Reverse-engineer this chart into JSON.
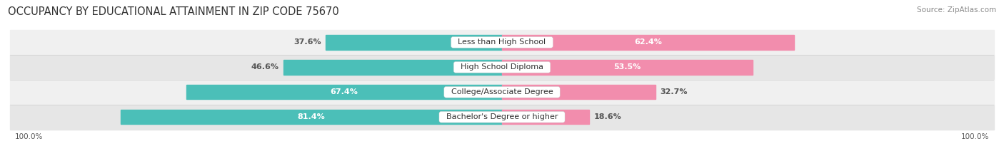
{
  "title": "OCCUPANCY BY EDUCATIONAL ATTAINMENT IN ZIP CODE 75670",
  "source": "Source: ZipAtlas.com",
  "categories": [
    "Less than High School",
    "High School Diploma",
    "College/Associate Degree",
    "Bachelor's Degree or higher"
  ],
  "owner_values": [
    37.6,
    46.6,
    67.4,
    81.4
  ],
  "renter_values": [
    62.4,
    53.5,
    32.7,
    18.6
  ],
  "owner_color": "#4BBFB8",
  "renter_color": "#F28DAD",
  "row_bg_colors": [
    "#F0F0F0",
    "#E6E6E6"
  ],
  "row_shadow_color": "#D0D0D0",
  "label_color_light": "#FFFFFF",
  "label_color_dark": "#555555",
  "axis_label_left": "100.0%",
  "axis_label_right": "100.0%",
  "title_fontsize": 10.5,
  "source_fontsize": 7.5,
  "bar_label_fontsize": 8,
  "category_fontsize": 8,
  "axis_fontsize": 7.5,
  "legend_fontsize": 8,
  "bar_height": 0.58,
  "figsize": [
    14.06,
    2.33
  ],
  "dpi": 100
}
